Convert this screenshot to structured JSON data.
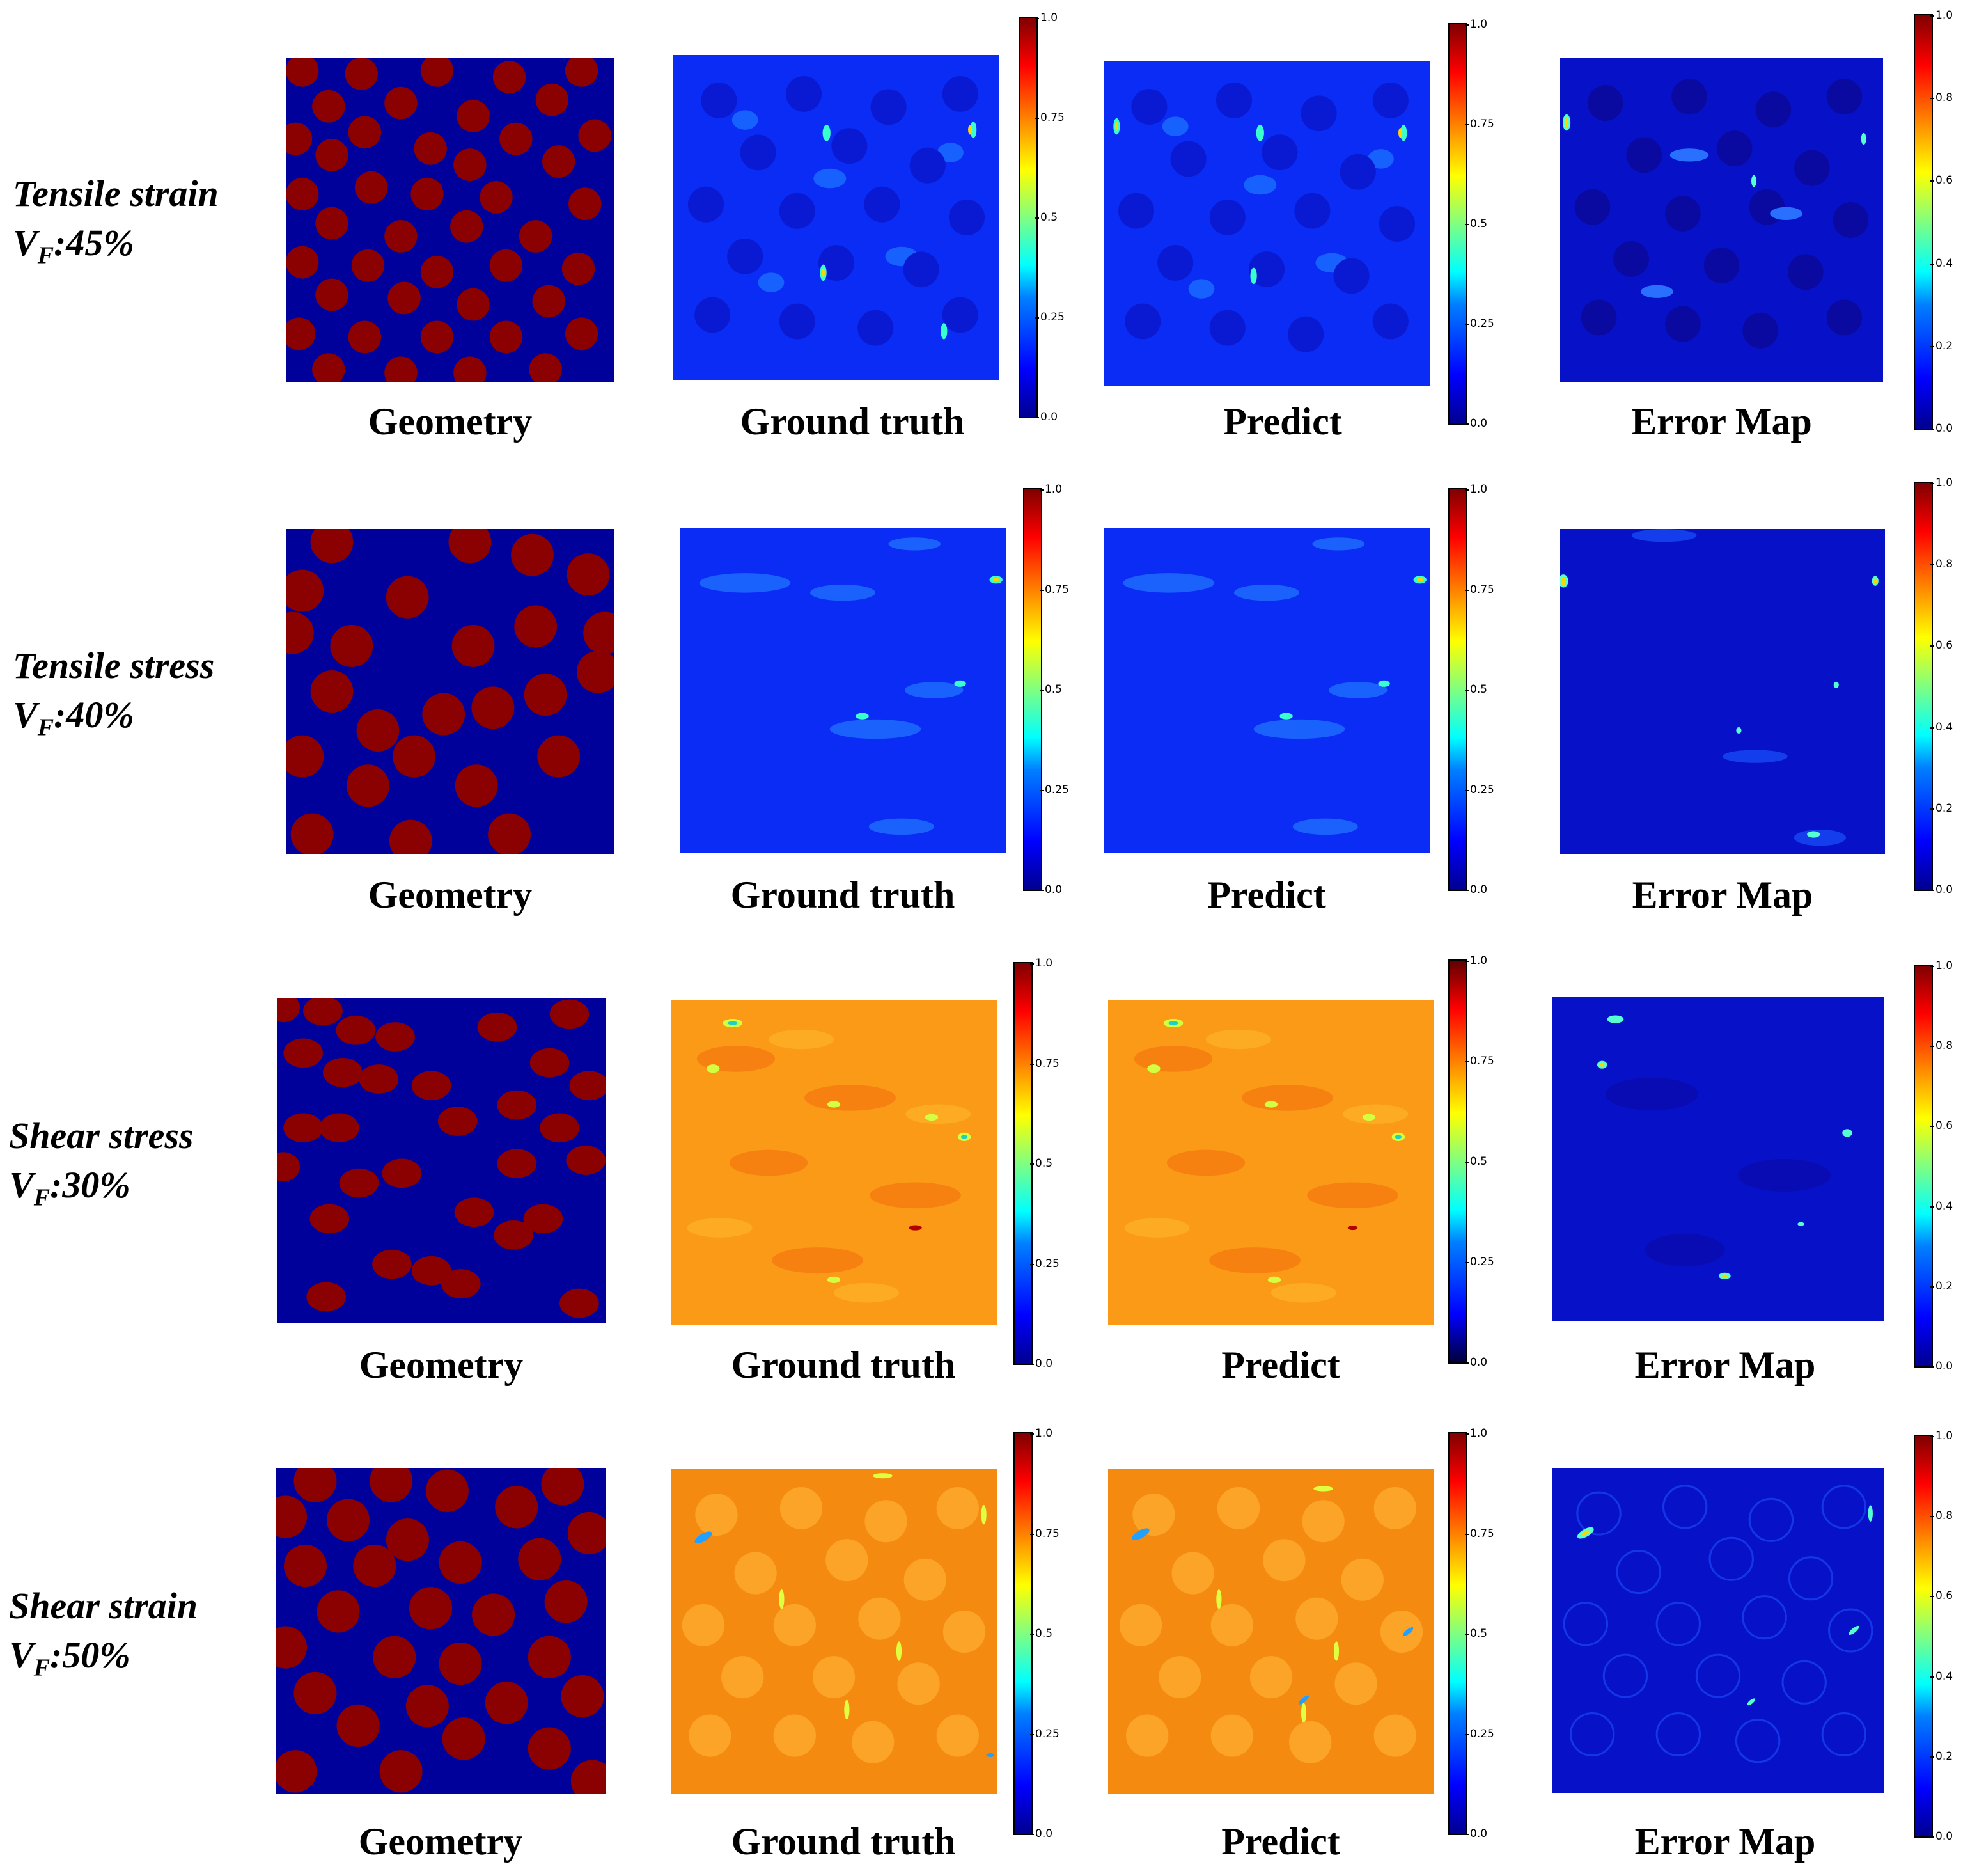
{
  "rows": [
    {
      "title": "Tensile strain",
      "vf_prefix": "V",
      "vf_sub": "F",
      "vf_value": ":45%",
      "captions": {
        "geometry": "Geometry",
        "truth": "Ground truth",
        "predict": "Predict",
        "error": "Error Map"
      }
    },
    {
      "title": "Tensile stress",
      "vf_prefix": "V",
      "vf_sub": "F",
      "vf_value": ":40%",
      "captions": {
        "geometry": "Geometry",
        "truth": "Ground truth",
        "predict": "Predict",
        "error": "Error Map"
      }
    },
    {
      "title": "Shear stress",
      "vf_prefix": "V",
      "vf_sub": "F",
      "vf_value": ":30%",
      "captions": {
        "geometry": "Geometry",
        "truth": "Ground truth",
        "predict": "Predict",
        "error": "Error Map"
      }
    },
    {
      "title": "Shear strain",
      "vf_prefix": "V",
      "vf_sub": "F",
      "vf_value": ":50%",
      "captions": {
        "geometry": "Geometry",
        "truth": "Ground truth",
        "predict": "Predict",
        "error": "Error Map"
      }
    }
  ],
  "colorbar_field": {
    "ticks": [
      "0.0",
      "0.25",
      "0.5",
      "0.75",
      "1.0"
    ]
  },
  "colorbar_error": {
    "ticks": [
      "0.0",
      "0.2",
      "0.4",
      "0.6",
      "0.8",
      "1.0"
    ]
  },
  "colors": {
    "matrix": "#00009a",
    "fiber": "#8b0000",
    "tensile_bg": "#0a2cf5",
    "shear_bg": "#fb9a16",
    "error_bg": "#0711c8"
  }
}
